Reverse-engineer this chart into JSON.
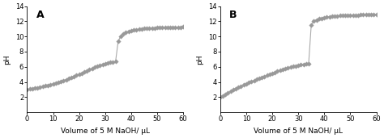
{
  "panel_A": {
    "label": "A",
    "x": [
      0,
      1,
      2,
      3,
      4,
      5,
      6,
      7,
      8,
      9,
      10,
      11,
      12,
      13,
      14,
      15,
      16,
      17,
      18,
      19,
      20,
      21,
      22,
      23,
      24,
      25,
      26,
      27,
      28,
      29,
      30,
      31,
      32,
      33,
      34,
      35,
      36,
      37,
      38,
      39,
      40,
      41,
      42,
      43,
      44,
      45,
      46,
      47,
      48,
      49,
      50,
      51,
      52,
      53,
      54,
      55,
      56,
      57,
      58,
      59,
      60
    ],
    "y": [
      3.0,
      3.05,
      3.12,
      3.18,
      3.25,
      3.33,
      3.4,
      3.48,
      3.57,
      3.66,
      3.76,
      3.86,
      3.97,
      4.08,
      4.2,
      4.32,
      4.45,
      4.58,
      4.72,
      4.86,
      5.0,
      5.15,
      5.3,
      5.46,
      5.62,
      5.78,
      5.93,
      6.07,
      6.2,
      6.32,
      6.43,
      6.52,
      6.58,
      6.63,
      6.67,
      9.35,
      10.05,
      10.35,
      10.52,
      10.65,
      10.75,
      10.84,
      10.91,
      10.97,
      11.02,
      11.05,
      11.08,
      11.1,
      11.12,
      11.14,
      11.15,
      11.16,
      11.17,
      11.18,
      11.19,
      11.2,
      11.21,
      11.22,
      11.23,
      11.24,
      11.25
    ]
  },
  "panel_B": {
    "label": "B",
    "x": [
      0,
      1,
      2,
      3,
      4,
      5,
      6,
      7,
      8,
      9,
      10,
      11,
      12,
      13,
      14,
      15,
      16,
      17,
      18,
      19,
      20,
      21,
      22,
      23,
      24,
      25,
      26,
      27,
      28,
      29,
      30,
      31,
      32,
      33,
      34,
      35,
      36,
      37,
      38,
      39,
      40,
      41,
      42,
      43,
      44,
      45,
      46,
      47,
      48,
      49,
      50,
      51,
      52,
      53,
      54,
      55,
      56,
      57,
      58,
      59,
      60
    ],
    "y": [
      2.0,
      2.18,
      2.35,
      2.55,
      2.75,
      2.95,
      3.13,
      3.3,
      3.47,
      3.62,
      3.77,
      3.92,
      4.06,
      4.2,
      4.34,
      4.48,
      4.62,
      4.75,
      4.88,
      5.01,
      5.14,
      5.27,
      5.4,
      5.52,
      5.64,
      5.75,
      5.86,
      5.96,
      6.05,
      6.13,
      6.21,
      6.28,
      6.34,
      6.4,
      6.45,
      11.55,
      12.05,
      12.2,
      12.32,
      12.42,
      12.5,
      12.56,
      12.61,
      12.65,
      12.68,
      12.71,
      12.74,
      12.76,
      12.78,
      12.8,
      12.81,
      12.82,
      12.83,
      12.84,
      12.85,
      12.86,
      12.87,
      12.88,
      12.89,
      12.9,
      12.91
    ]
  },
  "xlabel": "Volume of 5 M NaOH/ μL",
  "ylabel": "pH",
  "ylim": [
    0,
    14
  ],
  "xlim": [
    0,
    60
  ],
  "yticks": [
    2,
    4,
    6,
    8,
    10,
    12,
    14
  ],
  "xticks": [
    0,
    10,
    20,
    30,
    40,
    50,
    60
  ],
  "line_color": "#aaaaaa",
  "marker_color": "#999999",
  "marker": "D",
  "markersize": 2.8,
  "linewidth": 0.8,
  "bg_color": "#ffffff",
  "label_fontsize": 6.5,
  "tick_fontsize": 6.0,
  "panel_label_fontsize": 9,
  "fig_width": 4.74,
  "fig_height": 1.71,
  "dpi": 100
}
